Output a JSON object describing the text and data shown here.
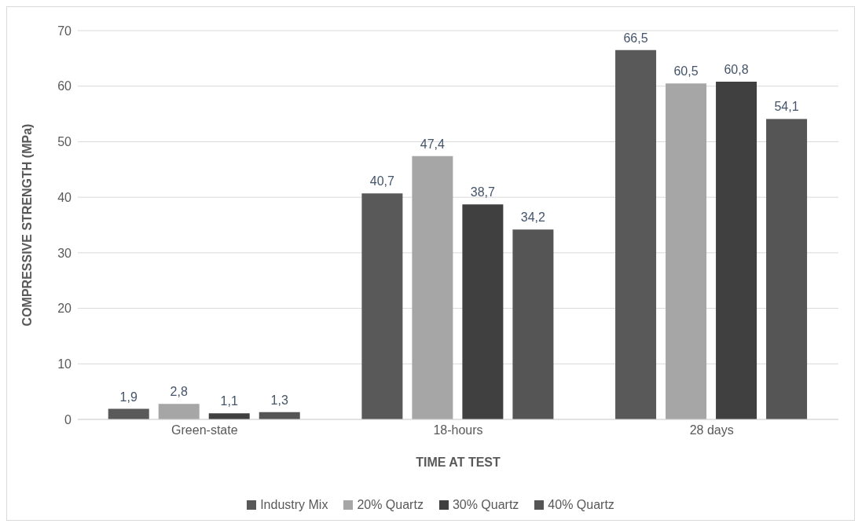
{
  "chart_data": {
    "type": "bar",
    "xlabel": "TIME AT TEST",
    "ylabel": "COMPRESSIVE STRENGTH (MPa)",
    "categories": [
      "Green-state",
      "18-hours",
      "28 days"
    ],
    "series": [
      {
        "name": "Industry Mix",
        "color": "#595959",
        "values": [
          1.9,
          40.7,
          66.5
        ],
        "value_labels": [
          "1,9",
          "40,7",
          "66,5"
        ]
      },
      {
        "name": "20% Quartz",
        "color": "#a6a6a6",
        "values": [
          2.8,
          47.4,
          60.5
        ],
        "value_labels": [
          "2,8",
          "47,4",
          "60,5"
        ]
      },
      {
        "name": "30% Quartz",
        "color": "#404040",
        "values": [
          1.1,
          38.7,
          60.8
        ],
        "value_labels": [
          "1,1",
          "38,7",
          "60,8"
        ]
      },
      {
        "name": "40% Quartz",
        "color": "#555555",
        "values": [
          1.3,
          34.2,
          54.1
        ],
        "value_labels": [
          "1,3",
          "34,2",
          "54,1"
        ]
      }
    ],
    "ylim": [
      0,
      70
    ],
    "yticks": [
      0,
      10,
      20,
      30,
      40,
      50,
      60,
      70
    ],
    "grid": "y",
    "legend": "bottom"
  }
}
